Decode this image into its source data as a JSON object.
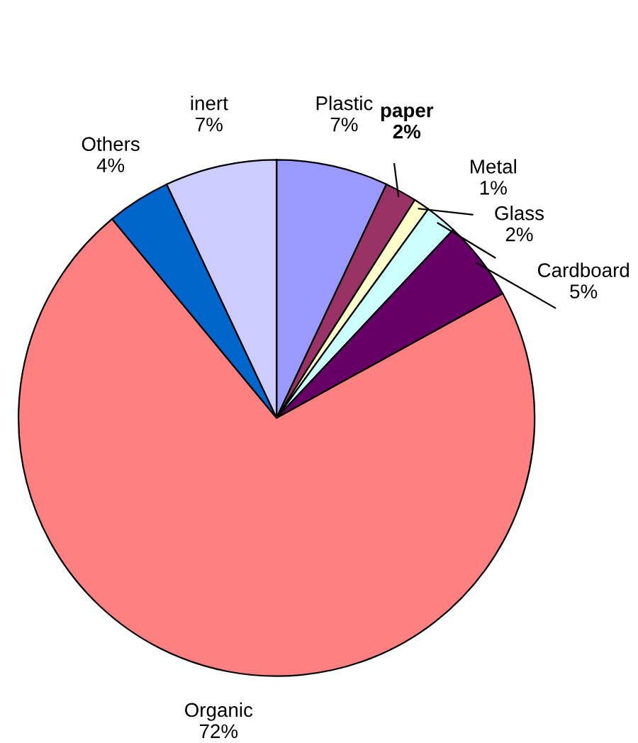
{
  "chart_data": {
    "type": "pie",
    "categories": [
      "Plastic",
      "paper",
      "Metal",
      "Glass",
      "Cardboard",
      "Organic",
      "Others",
      "inert"
    ],
    "values": [
      7,
      2,
      1,
      2,
      5,
      72,
      4,
      7
    ],
    "colors": [
      "#9999ff",
      "#993366",
      "#ffffcc",
      "#ccffff",
      "#660066",
      "#ff8080",
      "#0066cc",
      "#ccccff"
    ],
    "value_labels": [
      "7%",
      "2%",
      "1%",
      "2%",
      "5%",
      "72%",
      "4%",
      "7%"
    ],
    "legend": false
  }
}
